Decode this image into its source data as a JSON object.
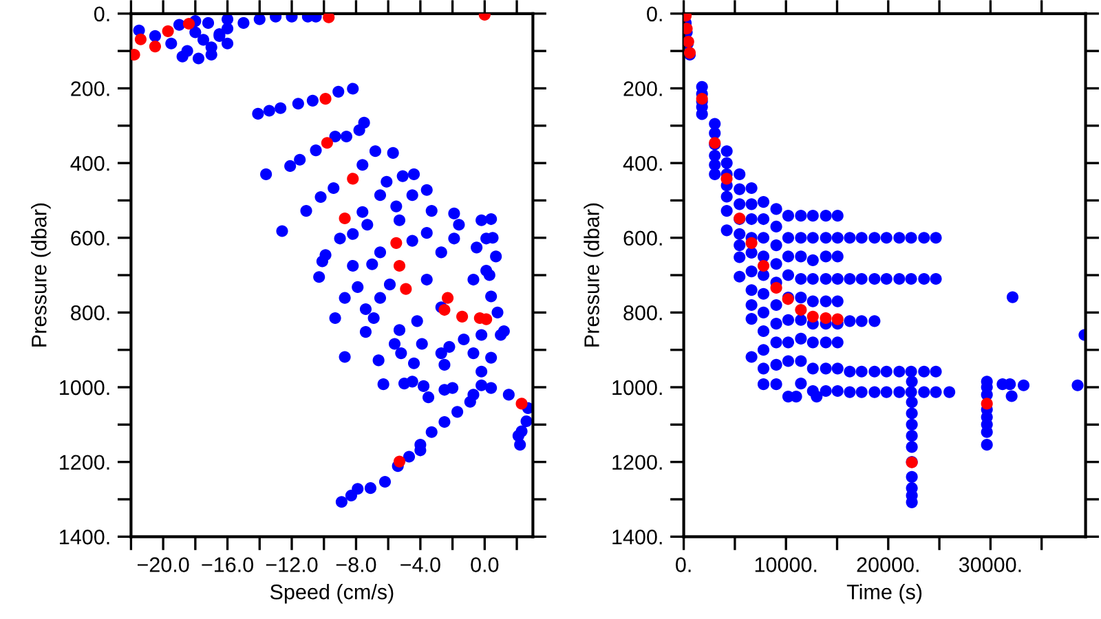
{
  "chart_data": [
    {
      "type": "scatter",
      "xlabel": "Speed (cm/s)",
      "ylabel": "Pressure (dbar)",
      "marker": "circle",
      "xlim": [
        -22,
        3
      ],
      "ylim": [
        1400,
        0
      ],
      "xticks": [
        {
          "value": -22,
          "label": null
        },
        {
          "value": -20,
          "label": "−20.0"
        },
        {
          "value": -18,
          "label": null
        },
        {
          "value": -16,
          "label": "−16.0"
        },
        {
          "value": -14,
          "label": null
        },
        {
          "value": -12,
          "label": "−12.0"
        },
        {
          "value": -10,
          "label": null
        },
        {
          "value": -8,
          "label": "−8.0"
        },
        {
          "value": -6,
          "label": null
        },
        {
          "value": -4,
          "label": "−4.0"
        },
        {
          "value": -2,
          "label": null
        },
        {
          "value": 0,
          "label": "0.0"
        },
        {
          "value": 2,
          "label": null
        }
      ],
      "yticks": [
        {
          "value": 0,
          "label": "0."
        },
        {
          "value": 100,
          "label": null
        },
        {
          "value": 200,
          "label": "200."
        },
        {
          "value": 300,
          "label": null
        },
        {
          "value": 400,
          "label": "400."
        },
        {
          "value": 500,
          "label": null
        },
        {
          "value": 600,
          "label": "600."
        },
        {
          "value": 700,
          "label": null
        },
        {
          "value": 800,
          "label": "800."
        },
        {
          "value": 900,
          "label": null
        },
        {
          "value": 1000,
          "label": "1000."
        },
        {
          "value": 1100,
          "label": null
        },
        {
          "value": 1200,
          "label": "1200."
        },
        {
          "value": 1300,
          "label": null
        },
        {
          "value": 1400,
          "label": "1400."
        }
      ],
      "series": [
        {
          "color": "#0000ff",
          "x": [
            -19,
            -18,
            -17.5,
            -17,
            -18.5,
            -17,
            -16.5,
            -18,
            -19.5,
            -16,
            -20.5,
            -21.5,
            -17.8,
            -18.8,
            -17.2,
            -15,
            -14,
            -13,
            -12,
            -11,
            -10.5,
            -16,
            -16.5,
            -16,
            -14.1,
            -13.4,
            -12.7,
            -11.6,
            -10.7,
            -9.1,
            -8.2,
            -13.6,
            -12.1,
            -11.5,
            -10.5,
            -9.3,
            -8.6,
            -7.8,
            -7.5,
            -12.6,
            -11.1,
            -10.2,
            -9.4,
            -7.6,
            -6.8,
            -5.7,
            -6.1,
            -5.1,
            -4.4,
            -6.5,
            -4.5,
            -3.6,
            -7.6,
            -5.5,
            -3.3,
            -9.0,
            -8.2,
            -7.3,
            -5.3,
            -3.6,
            -1.9,
            -1.6,
            -0.2,
            0.4,
            0.1,
            -0.5,
            -1.9,
            -2.7,
            -4.5,
            -6.5,
            -9.9,
            -8.2,
            -7.0,
            -10.3,
            -8.7,
            -9.3,
            -8.7,
            -7.4,
            -7.4,
            -6.9,
            -6.6,
            -7.9,
            -6.5,
            -5.9,
            -5.3,
            -5.6,
            -5.2,
            -4.4,
            -3.6,
            -2.7,
            -4.2,
            -3.9,
            -2.7,
            -2.2,
            -2.5,
            -1.3,
            -0.7,
            -0.2,
            0.4,
            0.1,
            -0.7,
            -0.2,
            1.0,
            0.4,
            -6.3,
            -5.0,
            -4.5,
            -3.8,
            -3.5,
            -2.5,
            -2.0,
            -0.7,
            -0.9,
            -0.2,
            0.4,
            1.5,
            2.7,
            2.6,
            2.3,
            2.1,
            2.2,
            -1.7,
            -2.5,
            -3.3,
            -4.0,
            -4.0,
            -4.7,
            -5.4,
            -6.2,
            -7.1,
            -7.9,
            -8.3,
            -8.9,
            -10.1,
            0.5,
            0.7,
            0.3,
            0.8,
            1.2
          ],
          "values": [
            30,
            50,
            70,
            90,
            100,
            110,
            60,
            20,
            80,
            40,
            60,
            45,
            120,
            115,
            25,
            25,
            15,
            8,
            8,
            8,
            8,
            15,
            55,
            80,
            268,
            260,
            253,
            241,
            233,
            209,
            201,
            430,
            408,
            391,
            366,
            329,
            329,
            312,
            292,
            582,
            528,
            491,
            467,
            405,
            368,
            373,
            450,
            435,
            430,
            486,
            486,
            472,
            531,
            516,
            528,
            602,
            590,
            565,
            553,
            587,
            535,
            565,
            553,
            550,
            602,
            626,
            602,
            639,
            608,
            639,
            646,
            675,
            671,
            705,
            761,
            815,
            919,
            852,
            791,
            815,
            928,
            732,
            761,
            725,
            847,
            884,
            909,
            936,
            712,
            786,
            823,
            884,
            909,
            892,
            940,
            872,
            909,
            860,
            757,
            688,
            712,
            958,
            860,
            921,
            992,
            990,
            985,
            997,
            1027,
            1007,
            1002,
            1020,
            1039,
            995,
            1002,
            1020,
            1056,
            1091,
            1118,
            1130,
            1154,
            1066,
            1093,
            1120,
            1154,
            1169,
            1186,
            1211,
            1253,
            1270,
            1272,
            1290,
            1307,
            663,
            600,
            650,
            700,
            800,
            850
          ]
        },
        {
          "color": "#ff0000",
          "x": [
            -21.8,
            -21.4,
            -20.5,
            -19.7,
            -18.4,
            -9.7,
            0.0,
            -9.9,
            -9.8,
            -8.2,
            -8.7,
            -5.5,
            -5.3,
            -4.9,
            -2.3,
            -2.5,
            -1.4,
            -0.3,
            0.1,
            2.3,
            -5.3
          ],
          "values": [
            110,
            69,
            88,
            47,
            27,
            10,
            3,
            228,
            346,
            442,
            548,
            614,
            675,
            737,
            761,
            793,
            811,
            815,
            818,
            1044,
            1199
          ]
        }
      ]
    },
    {
      "type": "scatter",
      "xlabel": "Time (s)",
      "ylabel": "Pressure (dbar)",
      "marker": "circle",
      "xlim": [
        0,
        39300
      ],
      "ylim": [
        1400,
        0
      ],
      "xticks": [
        {
          "value": 0,
          "label": "0."
        },
        {
          "value": 5000,
          "label": null
        },
        {
          "value": 10000,
          "label": "10000."
        },
        {
          "value": 15000,
          "label": null
        },
        {
          "value": 20000,
          "label": "20000."
        },
        {
          "value": 25000,
          "label": null
        },
        {
          "value": 30000,
          "label": "30000."
        },
        {
          "value": 35000,
          "label": null
        }
      ],
      "yticks": [
        {
          "value": 0,
          "label": "0."
        },
        {
          "value": 100,
          "label": null
        },
        {
          "value": 200,
          "label": "200."
        },
        {
          "value": 300,
          "label": null
        },
        {
          "value": 400,
          "label": "400."
        },
        {
          "value": 500,
          "label": null
        },
        {
          "value": 600,
          "label": "600."
        },
        {
          "value": 700,
          "label": null
        },
        {
          "value": 800,
          "label": "800."
        },
        {
          "value": 900,
          "label": null
        },
        {
          "value": 1000,
          "label": "1000."
        },
        {
          "value": 1100,
          "label": null
        },
        {
          "value": 1200,
          "label": "1200."
        },
        {
          "value": 1300,
          "label": null
        },
        {
          "value": 1400,
          "label": "1400."
        }
      ],
      "series": [
        {
          "color": "#0000ff",
          "x": [
            200,
            300,
            400,
            600,
            1790,
            1790,
            1790,
            1790,
            1790,
            3040,
            3040,
            3040,
            3040,
            3040,
            3040,
            4210,
            4210,
            4210,
            4210,
            4210,
            4210,
            4210,
            5460,
            5460,
            5460,
            5460,
            5460,
            5460,
            5460,
            5460,
            6630,
            6630,
            6630,
            6630,
            6630,
            6630,
            6630,
            6630,
            6630,
            6630,
            7800,
            7800,
            7800,
            7800,
            7800,
            7800,
            7800,
            7800,
            7800,
            7800,
            7800,
            9050,
            9050,
            9050,
            9050,
            9050,
            9050,
            9050,
            9050,
            9050,
            9050,
            10220,
            10220,
            10220,
            10220,
            10220,
            10220,
            10220,
            10220,
            10220,
            11460,
            11460,
            11460,
            11460,
            11460,
            11460,
            11460,
            11460,
            11460,
            12630,
            12630,
            12630,
            12630,
            12630,
            12630,
            12630,
            12630,
            12630,
            13900,
            13900,
            13900,
            13900,
            13900,
            13900,
            13900,
            13900,
            13900,
            15050,
            15050,
            15050,
            15050,
            15050,
            15050,
            15050,
            15050,
            15050,
            16240,
            17400,
            18660,
            19830,
            21080,
            22240,
            23500,
            24660,
            16240,
            17400,
            18660,
            19830,
            21080,
            22240,
            23500,
            24660,
            16240,
            17400,
            18660,
            16240,
            17400,
            18660,
            19830,
            21080,
            22240,
            23500,
            24660,
            16240,
            17400,
            18660,
            19830,
            21080,
            22240,
            23500,
            24660,
            25980,
            11000,
            13000,
            22310,
            22310,
            22310,
            22310,
            22310,
            22310,
            22310,
            22310,
            22310,
            22310,
            22310,
            29650,
            29650,
            29650,
            29650,
            29650,
            29650,
            29650,
            29650,
            31180,
            31900,
            32070,
            33240,
            32160,
            38520,
            39190
          ],
          "values": [
            25,
            50,
            80,
            110,
            196,
            215,
            235,
            250,
            269,
            295,
            320,
            350,
            380,
            405,
            430,
            368,
            400,
            430,
            460,
            490,
            528,
            580,
            430,
            470,
            510,
            550,
            590,
            620,
            652,
            704,
            467,
            510,
            550,
            600,
            640,
            690,
            740,
            780,
            817,
            919,
            504,
            550,
            600,
            650,
            700,
            750,
            800,
            850,
            900,
            950,
            992,
            523,
            570,
            620,
            670,
            720,
            780,
            830,
            880,
            940,
            992,
            541,
            600,
            650,
            700,
            760,
            820,
            880,
            930,
            1025,
            541,
            600,
            650,
            710,
            760,
            820,
            870,
            930,
            990,
            541,
            600,
            660,
            710,
            770,
            830,
            880,
            950,
            1010,
            541,
            600,
            650,
            710,
            770,
            830,
            880,
            950,
            1010,
            541,
            600,
            650,
            710,
            770,
            830,
            880,
            950,
            1010,
            600,
            600,
            600,
            600,
            600,
            600,
            600,
            600,
            710,
            710,
            710,
            710,
            710,
            710,
            710,
            710,
            823,
            823,
            823,
            958,
            958,
            958,
            958,
            958,
            958,
            958,
            958,
            1013,
            1013,
            1013,
            1013,
            1013,
            1013,
            1013,
            1013,
            1013,
            1025,
            1025,
            985,
            1040,
            1070,
            1100,
            1130,
            1160,
            1200,
            1240,
            1270,
            1290,
            1308,
            985,
            1000,
            1020,
            1060,
            1080,
            1100,
            1120,
            1154,
            992,
            992,
            1024,
            995,
            759,
            995,
            860
          ]
        },
        {
          "color": "#ff0000",
          "x": [
            200,
            300,
            450,
            600,
            1790,
            3040,
            4200,
            5460,
            6630,
            7800,
            9050,
            10200,
            11460,
            12630,
            13890,
            15050,
            29650,
            22310
          ],
          "values": [
            6,
            40,
            75,
            105,
            228,
            346,
            442,
            548,
            614,
            675,
            734,
            764,
            793,
            811,
            815,
            818,
            1044,
            1201
          ]
        }
      ]
    }
  ]
}
